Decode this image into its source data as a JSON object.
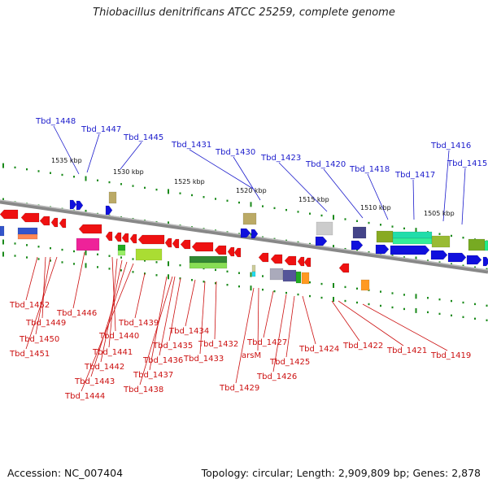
{
  "title": "Thiobacillus denitrificans ATCC 25259, complete genome",
  "footer": {
    "accession": "Accession: NC_007404",
    "summary": "Topology: circular; Length: 2,909,809 bp; Genes: 2,878"
  },
  "colors": {
    "upper_label": "#1b1bcc",
    "lower_label": "#cc1010",
    "forward_gene": "#1010dd",
    "reverse_gene": "#ee1111",
    "backbone": "#888888",
    "tick": "#1a8a1a"
  },
  "kbp_labels": [
    "1535 kbp",
    "1530 kbp",
    "1525 kbp",
    "1520 kbp",
    "1515 kbp",
    "1510 kbp",
    "1505 kbp"
  ],
  "upper_genes": [
    "Tbd_1448",
    "Tbd_1447",
    "Tbd_1445",
    "Tbd_1431",
    "Tbd_1430",
    "Tbd_1423",
    "Tbd_1420",
    "Tbd_1418",
    "Tbd_1417",
    "Tbd_1416",
    "Tbd_1415"
  ],
  "lower_genes": [
    "Tbd_1452",
    "Tbd_1449",
    "Tbd_1450",
    "Tbd_1451",
    "Tbd_1446",
    "Tbd_1440",
    "Tbd_1441",
    "Tbd_1442",
    "Tbd_1443",
    "Tbd_1444",
    "Tbd_1439",
    "Tbd_1437",
    "Tbd_1438",
    "Tbd_1436",
    "Tbd_1435",
    "Tbd_1434",
    "Tbd_1433",
    "Tbd_1432",
    "Tbd_1429",
    "arsM",
    "Tbd_1427",
    "Tbd_1426",
    "Tbd_1425",
    "Tbd_1424",
    "Tbd_1422",
    "Tbd_1421",
    "Tbd_1419"
  ]
}
